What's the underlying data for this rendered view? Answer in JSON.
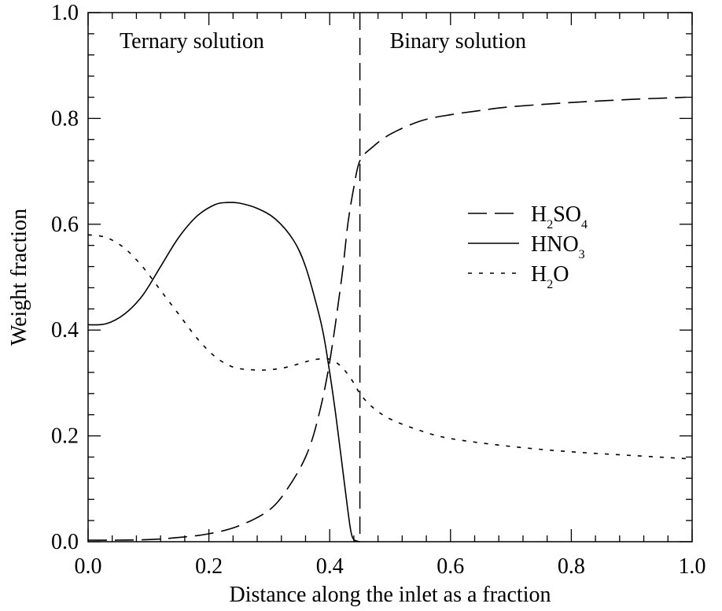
{
  "chart_data": {
    "type": "line",
    "title": "",
    "xlabel": "Distance along the inlet as a fraction",
    "ylabel": "Weight fraction",
    "xlim": [
      0.0,
      1.0
    ],
    "ylim": [
      0.0,
      1.0
    ],
    "x_ticks": [
      "0.0",
      "0.2",
      "0.4",
      "0.6",
      "0.8",
      "1.0"
    ],
    "y_ticks": [
      "0.0",
      "0.2",
      "0.4",
      "0.6",
      "0.8",
      "1.0"
    ],
    "grid": false,
    "legend_position": "center-right",
    "region_divider_x": 0.45,
    "region_labels": {
      "left": "Ternary solution",
      "right": "Binary solution"
    },
    "series": [
      {
        "name_base": [
          "H",
          "2",
          "SO",
          "4"
        ],
        "line_style": "long-dash",
        "x": [
          0.0,
          0.05,
          0.1,
          0.15,
          0.2,
          0.25,
          0.3,
          0.33,
          0.36,
          0.38,
          0.4,
          0.42,
          0.43,
          0.44,
          0.45,
          0.47,
          0.5,
          0.55,
          0.6,
          0.65,
          0.7,
          0.8,
          0.9,
          0.99
        ],
        "values": [
          0.003,
          0.003,
          0.004,
          0.008,
          0.015,
          0.03,
          0.06,
          0.1,
          0.16,
          0.23,
          0.34,
          0.5,
          0.6,
          0.67,
          0.72,
          0.745,
          0.77,
          0.795,
          0.807,
          0.815,
          0.822,
          0.83,
          0.836,
          0.84
        ]
      },
      {
        "name_base": [
          "HNO",
          "3"
        ],
        "line_style": "solid",
        "x": [
          0.0,
          0.03,
          0.06,
          0.09,
          0.12,
          0.15,
          0.18,
          0.21,
          0.23,
          0.25,
          0.28,
          0.31,
          0.34,
          0.36,
          0.38,
          0.39,
          0.4,
          0.41,
          0.42,
          0.43,
          0.435,
          0.44,
          0.45
        ],
        "values": [
          0.41,
          0.412,
          0.43,
          0.465,
          0.52,
          0.575,
          0.615,
          0.637,
          0.641,
          0.64,
          0.63,
          0.61,
          0.57,
          0.52,
          0.44,
          0.39,
          0.32,
          0.24,
          0.15,
          0.06,
          0.02,
          0.004,
          0.0
        ]
      },
      {
        "name_base": [
          "H",
          "2",
          "O"
        ],
        "line_style": "short-dash",
        "x": [
          0.0,
          0.03,
          0.06,
          0.09,
          0.12,
          0.15,
          0.18,
          0.21,
          0.24,
          0.27,
          0.3,
          0.33,
          0.36,
          0.38,
          0.4,
          0.42,
          0.44,
          0.45,
          0.47,
          0.5,
          0.55,
          0.6,
          0.7,
          0.8,
          0.9,
          0.99
        ],
        "values": [
          0.58,
          0.575,
          0.555,
          0.52,
          0.475,
          0.43,
          0.385,
          0.35,
          0.33,
          0.325,
          0.325,
          0.33,
          0.34,
          0.345,
          0.345,
          0.33,
          0.3,
          0.28,
          0.255,
          0.232,
          0.21,
          0.195,
          0.18,
          0.17,
          0.163,
          0.157
        ]
      }
    ]
  }
}
